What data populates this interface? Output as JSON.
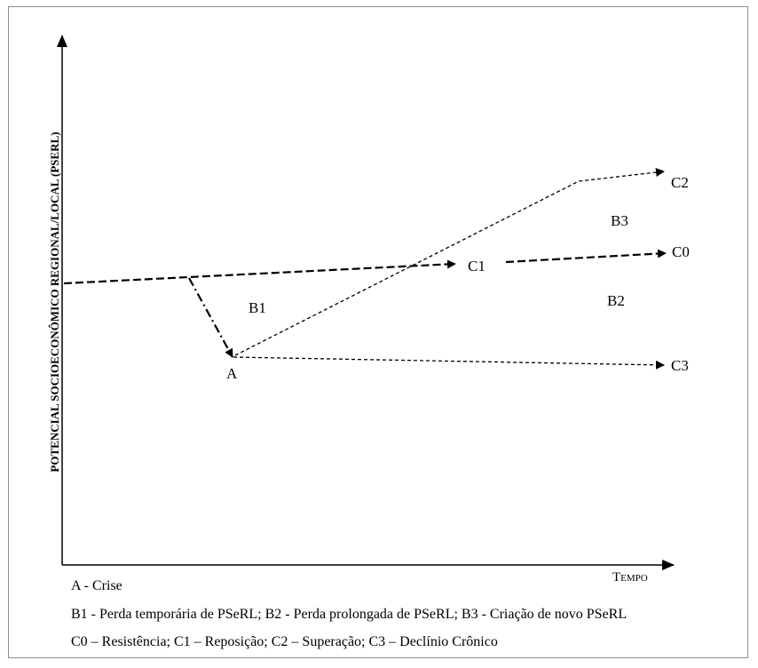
{
  "diagram": {
    "y_axis_label": "POTENCIAL SOCIOECONÔMICO REGIONAL/LOCAL (PSERL)",
    "x_axis_label": {
      "first": "T",
      "rest": "EMPO"
    },
    "points": {
      "A": "A",
      "B1": "B1",
      "B2": "B2",
      "B3": "B3",
      "C0": "C0",
      "C1": "C1",
      "C2": "C2",
      "C3": "C3"
    }
  },
  "legend": {
    "line1": "A - Crise",
    "line2": "B1 - Perda temporária  de  PSeRL; B2 - Perda prolongada de PSeRL; B3 - Criação de novo PSeRL",
    "line3": "C0 – Resistência; C1 – Reposição; C2 – Superação; C3 – Declínio Crônico"
  }
}
